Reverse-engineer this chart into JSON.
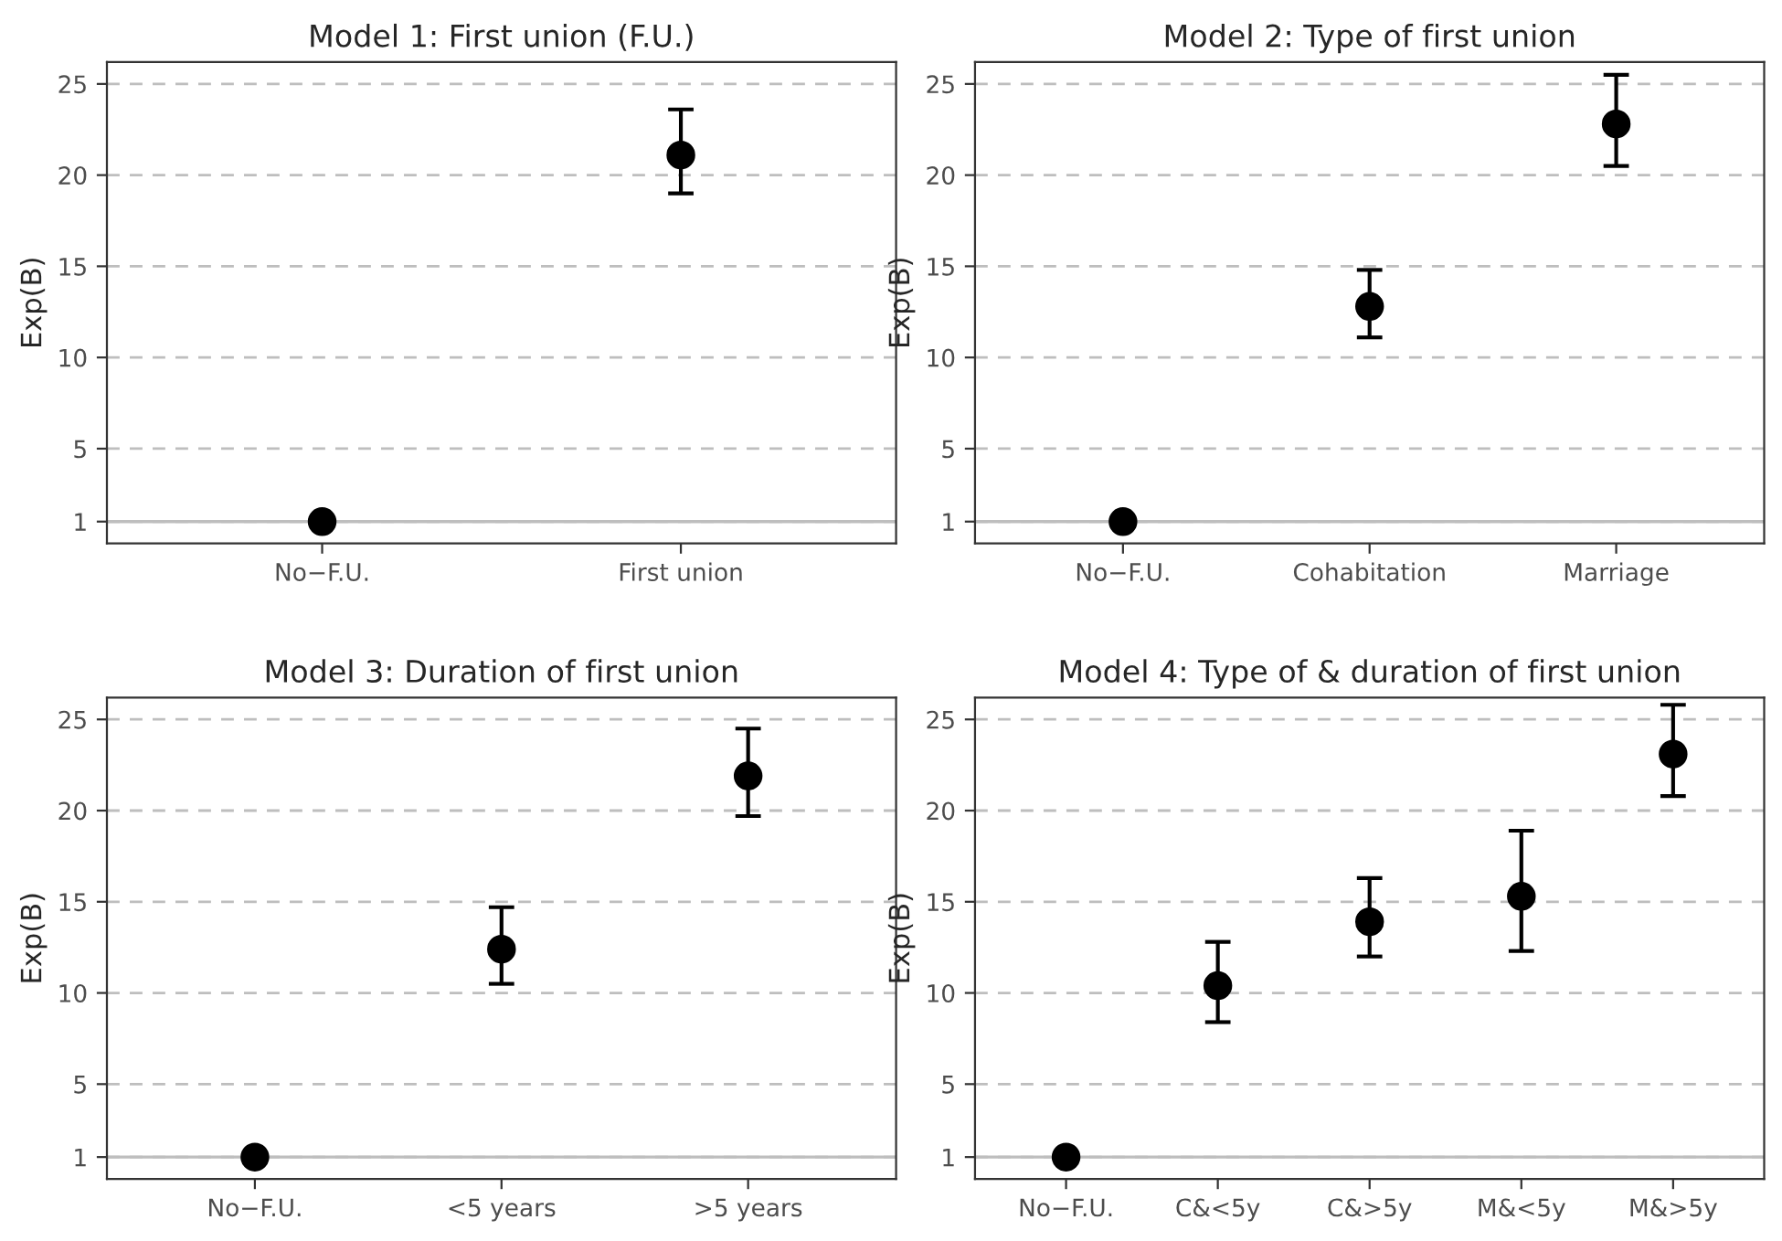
{
  "chart_data": [
    {
      "type": "scatter",
      "title": "Model 1: First union (F.U.)",
      "ylabel": "Exp(B)",
      "categories": [
        "No−F.U.",
        "First union"
      ],
      "values": [
        1,
        21.1
      ],
      "errors": [
        null,
        [
          19.0,
          23.6
        ]
      ],
      "color": "#000000",
      "marker": "circle",
      "ylim": [
        -0.2,
        26.2
      ],
      "yticks": [
        1,
        5,
        10,
        15,
        20,
        25
      ],
      "grid": "y",
      "ref_lines": [
        {
          "axis": "y",
          "value": 1,
          "color": "#bebebe",
          "line_style": "solid"
        }
      ]
    },
    {
      "type": "scatter",
      "title": "Model 2: Type of first union",
      "ylabel": "Exp(B)",
      "categories": [
        "No−F.U.",
        "Cohabitation",
        "Marriage"
      ],
      "values": [
        1,
        12.8,
        22.8
      ],
      "errors": [
        null,
        [
          11.1,
          14.8
        ],
        [
          20.5,
          25.5
        ]
      ],
      "color": "#000000",
      "marker": "circle",
      "ylim": [
        -0.2,
        26.2
      ],
      "yticks": [
        1,
        5,
        10,
        15,
        20,
        25
      ],
      "grid": "y",
      "ref_lines": [
        {
          "axis": "y",
          "value": 1,
          "color": "#bebebe",
          "line_style": "solid"
        }
      ]
    },
    {
      "type": "scatter",
      "title": "Model 3: Duration of first union",
      "ylabel": "Exp(B)",
      "categories": [
        "No−F.U.",
        "<5 years",
        ">5 years"
      ],
      "values": [
        1,
        12.4,
        21.9
      ],
      "errors": [
        null,
        [
          10.5,
          14.7
        ],
        [
          19.7,
          24.5
        ]
      ],
      "color": "#000000",
      "marker": "circle",
      "ylim": [
        -0.2,
        26.2
      ],
      "yticks": [
        1,
        5,
        10,
        15,
        20,
        25
      ],
      "grid": "y",
      "ref_lines": [
        {
          "axis": "y",
          "value": 1,
          "color": "#bebebe",
          "line_style": "solid"
        }
      ]
    },
    {
      "type": "scatter",
      "title": "Model 4: Type of & duration of first union",
      "ylabel": "Exp(B)",
      "categories": [
        "No−F.U.",
        "C&<5y",
        "C&>5y",
        "M&<5y",
        "M&>5y"
      ],
      "values": [
        1,
        10.4,
        13.9,
        15.3,
        23.1
      ],
      "errors": [
        null,
        [
          8.4,
          12.8
        ],
        [
          12.0,
          16.3
        ],
        [
          12.3,
          18.9
        ],
        [
          20.8,
          25.8
        ]
      ],
      "color": "#000000",
      "marker": "circle",
      "ylim": [
        -0.2,
        26.2
      ],
      "yticks": [
        1,
        5,
        10,
        15,
        20,
        25
      ],
      "grid": "y",
      "ref_lines": [
        {
          "axis": "y",
          "value": 1,
          "color": "#bebebe",
          "line_style": "solid"
        }
      ]
    }
  ]
}
